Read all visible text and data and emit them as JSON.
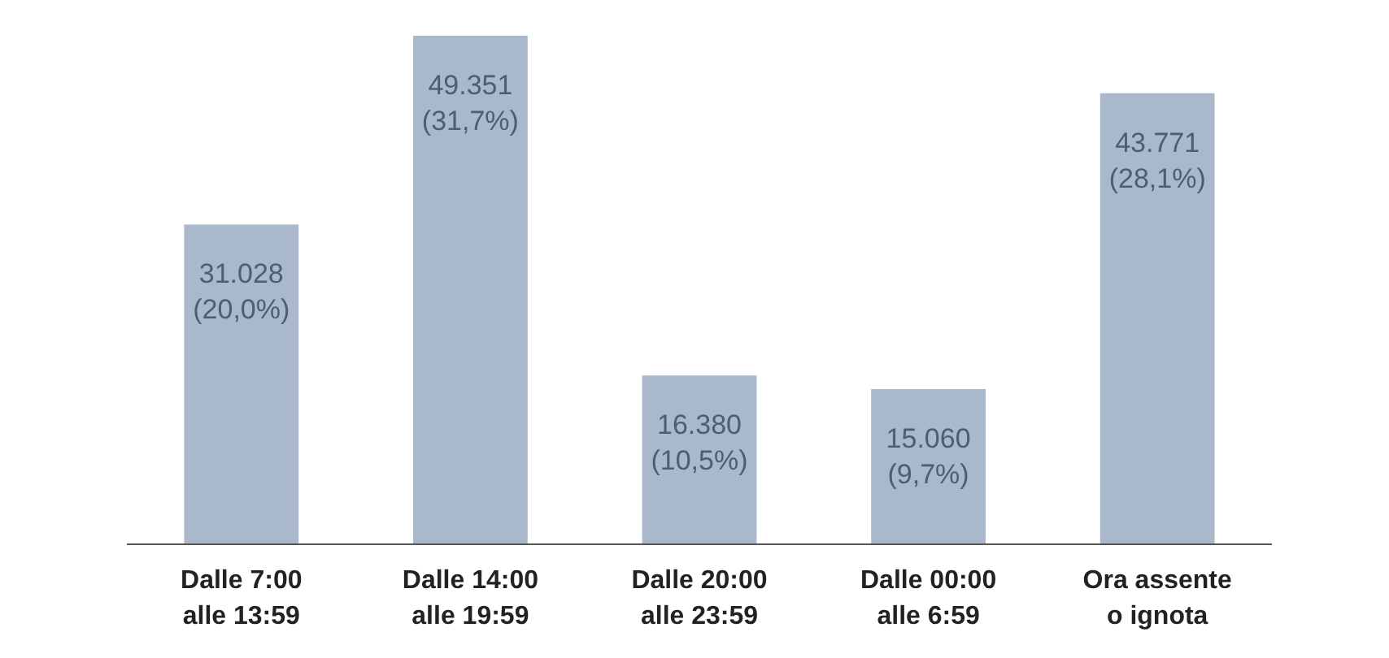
{
  "chart_data": {
    "type": "bar",
    "categories": [
      "Dalle 7:00\nalle 13:59",
      "Dalle 14:00\nalle 19:59",
      "Dalle 20:00\nalle 23:59",
      "Dalle 00:00\nalle 6:59",
      "Ora assente\no ignota"
    ],
    "values": [
      31028,
      49351,
      16380,
      15060,
      43771
    ],
    "value_labels": [
      "31.028\n(20,0%)",
      "49.351\n(31,7%)",
      "16.380\n(10,5%)",
      "15.060\n(9,7%)",
      "43.771\n(28,1%)"
    ],
    "color": "#a9b8ca"
  }
}
